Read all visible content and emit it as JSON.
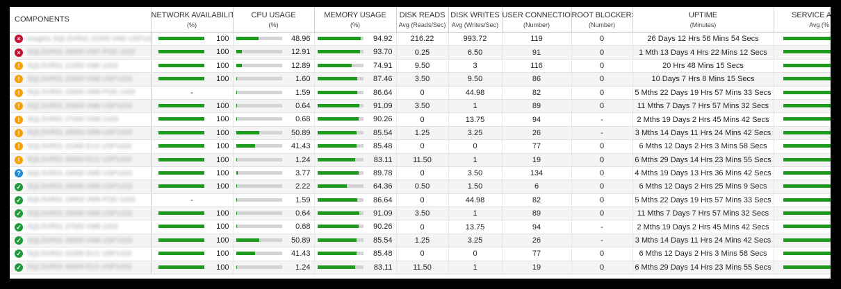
{
  "headers": {
    "components": "COMPONENTS",
    "network": {
      "title": "NETWORK AVAILABILITY",
      "sub": "(%)"
    },
    "cpu": {
      "title": "CPU USAGE",
      "sub": "(%)"
    },
    "memory": {
      "title": "MEMORY USAGE",
      "sub": "(%)"
    },
    "disk_reads": {
      "title": "DISK READS",
      "sub": "Avg (Reads/Sec)"
    },
    "disk_writes": {
      "title": "DISK WRITES",
      "sub": "Avg (Writes/Sec)"
    },
    "user_conn": {
      "title": "USER CONNECTIONS",
      "sub": "(Number)"
    },
    "root_block": {
      "title": "ROOT BLOCKERS",
      "sub": "(Number)"
    },
    "uptime": {
      "title": "UPTIME",
      "sub": "(Minutes)"
    },
    "service": {
      "title": "SERVICE AVAIL",
      "sub": "Avg (%"
    }
  },
  "status_colors": {
    "critical": "#c8102e",
    "warning": "#f5a00a",
    "unknown": "#1e8ad6",
    "ok": "#1f9a3a"
  },
  "bar_colors": {
    "fill": "#1e9a1e",
    "track": "#d4d4d4"
  },
  "rows": [
    {
      "status": "critical",
      "status_icon": "×",
      "name": "Insights SQLSVR01 21000 VM0 USP1433",
      "network": "100",
      "network_pct": 100,
      "cpu": "48.96",
      "cpu_pct": 48.96,
      "mem": "94.92",
      "mem_pct": 94.92,
      "reads": "216.22",
      "writes": "993.72",
      "conn": "119",
      "blockers": "0",
      "uptime": "26 Days 12 Hrs 56 Mins 54 Secs",
      "service_pct": 100
    },
    {
      "status": "critical",
      "status_icon": "×",
      "name": "SQLSVR01 26000 VM7 POD 1433",
      "network": "100",
      "network_pct": 100,
      "cpu": "12.91",
      "cpu_pct": 12.91,
      "mem": "93.70",
      "mem_pct": 93.7,
      "reads": "0.25",
      "writes": "6.50",
      "conn": "91",
      "blockers": "0",
      "uptime": "1 Mth 13 Days 4 Hrs 22 Mins 12 Secs",
      "service_pct": 100
    },
    {
      "status": "warning",
      "status_icon": "!",
      "name": "SQLSVR01 21000 VM0 1433",
      "network": "100",
      "network_pct": 100,
      "cpu": "12.89",
      "cpu_pct": 12.89,
      "mem": "74.91",
      "mem_pct": 74.91,
      "reads": "9.50",
      "writes": "3",
      "conn": "116",
      "blockers": "0",
      "uptime": "20 Hrs 48 Mins 15 Secs",
      "service_pct": 100
    },
    {
      "status": "warning",
      "status_icon": "!",
      "name": "SQLSVR01 22000 VM0 USP1433",
      "network": "100",
      "network_pct": 100,
      "cpu": "1.60",
      "cpu_pct": 1.6,
      "mem": "87.46",
      "mem_pct": 87.46,
      "reads": "3.50",
      "writes": "9.50",
      "conn": "86",
      "blockers": "0",
      "uptime": "10 Days 7 Hrs 8 Mins 15 Secs",
      "service_pct": 100
    },
    {
      "status": "warning",
      "status_icon": "!",
      "name": "SQLSVR01 23000 VM9 POD 1433",
      "network": "-",
      "network_pct": null,
      "cpu": "1.59",
      "cpu_pct": 1.59,
      "mem": "86.64",
      "mem_pct": 86.64,
      "reads": "0",
      "writes": "44.98",
      "conn": "82",
      "blockers": "0",
      "uptime": "5 Mths 22 Days 19 Hrs 57 Mins 33 Secs",
      "service_pct": 100
    },
    {
      "status": "warning",
      "status_icon": "!",
      "name": "SQLSVR01 25000 VM6 USP1433",
      "network": "100",
      "network_pct": 100,
      "cpu": "0.64",
      "cpu_pct": 0.64,
      "mem": "91.09",
      "mem_pct": 91.09,
      "reads": "3.50",
      "writes": "1",
      "conn": "89",
      "blockers": "0",
      "uptime": "11 Mths 7 Days 7 Hrs 57 Mins 32 Secs",
      "service_pct": 100
    },
    {
      "status": "warning",
      "status_icon": "!",
      "name": "SQLSVR01 27000 VM8 1433",
      "network": "100",
      "network_pct": 100,
      "cpu": "0.68",
      "cpu_pct": 0.68,
      "mem": "90.26",
      "mem_pct": 90.26,
      "reads": "0",
      "writes": "13.75",
      "conn": "94",
      "blockers": "-",
      "uptime": "2 Mths 19 Days 2 Hrs 45 Mins 42 Secs",
      "service_pct": 100
    },
    {
      "status": "warning",
      "status_icon": "!",
      "name": "SQLSVR01 28000 VM8 USP1433",
      "network": "100",
      "network_pct": 100,
      "cpu": "50.89",
      "cpu_pct": 50.89,
      "mem": "85.54",
      "mem_pct": 85.54,
      "reads": "1.25",
      "writes": "3.25",
      "conn": "26",
      "blockers": "-",
      "uptime": "3 Mths 14 Days 11 Hrs 24 Mins 42 Secs",
      "service_pct": 100
    },
    {
      "status": "warning",
      "status_icon": "!",
      "name": "SQLSVR01 31000 EU1 USP1433",
      "network": "100",
      "network_pct": 100,
      "cpu": "41.43",
      "cpu_pct": 41.43,
      "mem": "85.48",
      "mem_pct": 85.48,
      "reads": "0",
      "writes": "0",
      "conn": "77",
      "blockers": "0",
      "uptime": "6 Mths 12 Days 2 Hrs 3 Mins 58 Secs",
      "service_pct": 100
    },
    {
      "status": "warning",
      "status_icon": "!",
      "name": "SQLSVR01 40000 EU1 USP1433",
      "network": "100",
      "network_pct": 100,
      "cpu": "1.24",
      "cpu_pct": 1.24,
      "mem": "83.11",
      "mem_pct": 83.11,
      "reads": "11.50",
      "writes": "1",
      "conn": "19",
      "blockers": "0",
      "uptime": "6 Mths 29 Days 14 Hrs 23 Mins 55 Secs",
      "service_pct": 100
    },
    {
      "status": "unknown",
      "status_icon": "?",
      "name": "SQLSVR01 24000 VM5 USP1433",
      "network": "100",
      "network_pct": 100,
      "cpu": "3.77",
      "cpu_pct": 3.77,
      "mem": "89.78",
      "mem_pct": 89.78,
      "reads": "0",
      "writes": "3.50",
      "conn": "134",
      "blockers": "0",
      "uptime": "4 Mths 19 Days 13 Hrs 36 Mins 42 Secs",
      "service_pct": 100
    },
    {
      "status": "ok",
      "status_icon": "✓",
      "name": "SQLSVR01 26000 VM5 USP1433",
      "network": "100",
      "network_pct": 100,
      "cpu": "2.22",
      "cpu_pct": 2.22,
      "mem": "64.36",
      "mem_pct": 64.36,
      "reads": "0.50",
      "writes": "1.50",
      "conn": "6",
      "blockers": "0",
      "uptime": "6 Mths 12 Days 2 Hrs 25 Mins 9 Secs",
      "service_pct": 100
    },
    {
      "status": "ok",
      "status_icon": "✓",
      "name": "SQLSVR01 23000 VM9 POD 1433",
      "network": "-",
      "network_pct": null,
      "cpu": "1.59",
      "cpu_pct": 1.59,
      "mem": "86.64",
      "mem_pct": 86.64,
      "reads": "0",
      "writes": "44.98",
      "conn": "82",
      "blockers": "0",
      "uptime": "5 Mths 22 Days 19 Hrs 57 Mins 33 Secs",
      "service_pct": 100
    },
    {
      "status": "ok",
      "status_icon": "✓",
      "name": "SQLSVR01 25000 VM6 USP1433",
      "network": "100",
      "network_pct": 100,
      "cpu": "0.64",
      "cpu_pct": 0.64,
      "mem": "91.09",
      "mem_pct": 91.09,
      "reads": "3.50",
      "writes": "1",
      "conn": "89",
      "blockers": "0",
      "uptime": "11 Mths 7 Days 7 Hrs 57 Mins 32 Secs",
      "service_pct": 100
    },
    {
      "status": "ok",
      "status_icon": "✓",
      "name": "SQLSVR01 27000 VM8 1433",
      "network": "100",
      "network_pct": 100,
      "cpu": "0.68",
      "cpu_pct": 0.68,
      "mem": "90.26",
      "mem_pct": 90.26,
      "reads": "0",
      "writes": "13.75",
      "conn": "94",
      "blockers": "-",
      "uptime": "2 Mths 19 Days 2 Hrs 45 Mins 42 Secs",
      "service_pct": 100
    },
    {
      "status": "ok",
      "status_icon": "✓",
      "name": "SQLSVR01 28000 VM8 USP1433",
      "network": "100",
      "network_pct": 100,
      "cpu": "50.89",
      "cpu_pct": 50.89,
      "mem": "85.54",
      "mem_pct": 85.54,
      "reads": "1.25",
      "writes": "3.25",
      "conn": "26",
      "blockers": "-",
      "uptime": "3 Mths 14 Days 11 Hrs 24 Mins 42 Secs",
      "service_pct": 100
    },
    {
      "status": "ok",
      "status_icon": "✓",
      "name": "SQLSVR01 31000 EU1 USP1433",
      "network": "100",
      "network_pct": 100,
      "cpu": "41.43",
      "cpu_pct": 41.43,
      "mem": "85.48",
      "mem_pct": 85.48,
      "reads": "0",
      "writes": "0",
      "conn": "77",
      "blockers": "0",
      "uptime": "6 Mths 12 Days 2 Hrs 3 Mins 58 Secs",
      "service_pct": 100
    },
    {
      "status": "ok",
      "status_icon": "✓",
      "name": "SQLSVR01 40000 EU1 USP1433",
      "network": "100",
      "network_pct": 100,
      "cpu": "1.24",
      "cpu_pct": 1.24,
      "mem": "83.11",
      "mem_pct": 83.11,
      "reads": "11.50",
      "writes": "1",
      "conn": "19",
      "blockers": "0",
      "uptime": "6 Mths 29 Days 14 Hrs 23 Mins 55 Secs",
      "service_pct": 100
    }
  ]
}
